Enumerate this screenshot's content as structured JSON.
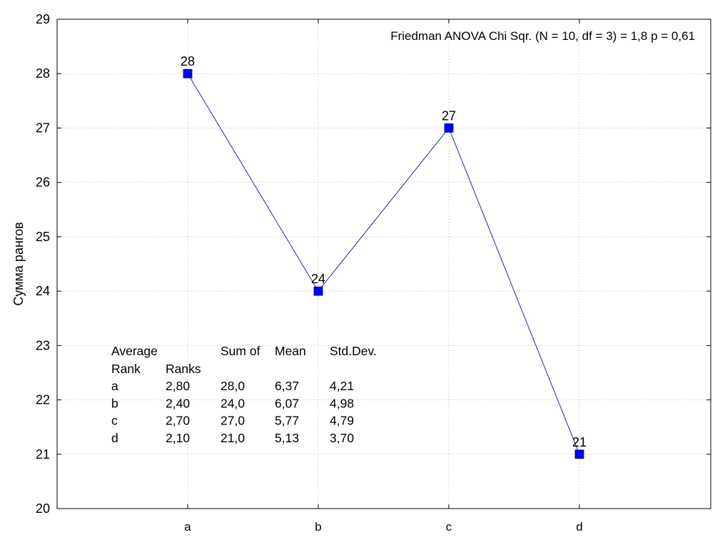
{
  "chart_data": {
    "type": "line",
    "title": "",
    "xlabel": "",
    "ylabel": "Сумма рангов",
    "categories": [
      "a",
      "b",
      "c",
      "d"
    ],
    "series": [
      {
        "values": [
          28,
          24,
          27,
          21
        ],
        "point_labels": [
          "28",
          "24",
          "27",
          "21"
        ],
        "color": "#0000ff"
      }
    ],
    "ylim": [
      20,
      29
    ],
    "yticks": [
      "20",
      "21",
      "22",
      "23",
      "24",
      "25",
      "26",
      "27",
      "28",
      "29"
    ],
    "grid": true,
    "annotation": "Friedman ANOVA  Chi Sqr. (N = 10, df = 3) = 1,8 p = 0,61",
    "stats_table": {
      "header_row1": [
        "Average",
        "Sum of",
        "Mean",
        "Std.Dev."
      ],
      "header_row2": [
        "Rank",
        "Ranks"
      ],
      "rows": [
        [
          "a",
          "2,80",
          "28,0",
          "6,37",
          "4,21"
        ],
        [
          "b",
          "2,40",
          "24,0",
          "6,07",
          "4,98"
        ],
        [
          "c",
          "2,70",
          "27,0",
          "5,77",
          "4,79"
        ],
        [
          "d",
          "2,10",
          "21,0",
          "5,13",
          "3,70"
        ]
      ]
    }
  }
}
